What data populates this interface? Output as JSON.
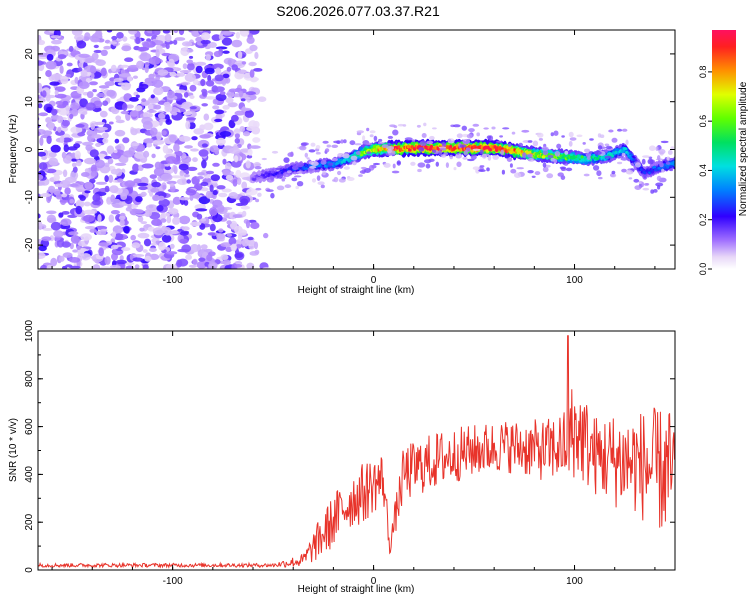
{
  "title": "S206.2026.077.03.37.R21",
  "chart_data": [
    {
      "type": "heatmap",
      "xlabel": "Height of straight line (km)",
      "ylabel": "Frequency (Hz)",
      "xlim": [
        -167,
        150
      ],
      "ylim": [
        -25,
        25
      ],
      "xticks": [
        -100,
        0,
        100
      ],
      "yticks": [
        -20,
        -10,
        0,
        10,
        20
      ],
      "colorbar": {
        "label": "Normalized spectral amplitude",
        "range": [
          0,
          0.97
        ],
        "ticks": [
          0.0,
          0.2,
          0.4,
          0.6,
          0.8
        ]
      },
      "noise_region_x": [
        -167,
        -50
      ],
      "ridge": {
        "description_points_x": [
          -60,
          -50,
          -40,
          -30,
          -20,
          -10,
          -5,
          0,
          10,
          20,
          40,
          60,
          80,
          95,
          105,
          115,
          125,
          130,
          135,
          140,
          148
        ],
        "frequency_hz": [
          -6,
          -5,
          -4,
          -3.5,
          -3,
          -1.5,
          -0.5,
          0,
          0.2,
          0.3,
          0.3,
          0.3,
          -1,
          -1.5,
          -2,
          -1.5,
          0,
          -2.5,
          -5,
          -4,
          -3
        ],
        "amplitude": [
          0.15,
          0.2,
          0.25,
          0.3,
          0.35,
          0.45,
          0.6,
          0.75,
          0.85,
          0.95,
          0.95,
          0.95,
          0.7,
          0.6,
          0.5,
          0.45,
          0.4,
          0.3,
          0.25,
          0.3,
          0.35
        ]
      }
    },
    {
      "type": "line",
      "xlabel": "Height of straight line (km)",
      "ylabel": "SNR (10 * v/v)",
      "xlim": [
        -167,
        150
      ],
      "ylim": [
        0,
        1000
      ],
      "xticks": [
        -100,
        0,
        100
      ],
      "yticks": [
        0,
        200,
        400,
        600,
        800,
        1000
      ],
      "color": "#e8332a",
      "series_envelope": {
        "x": [
          -167,
          -100,
          -50,
          -35,
          -25,
          -15,
          -10,
          -5,
          0,
          5,
          8,
          15,
          25,
          35,
          50,
          65,
          75,
          85,
          95,
          100,
          110,
          120,
          130,
          140,
          150
        ],
        "mean": [
          20,
          20,
          20,
          40,
          150,
          260,
          300,
          320,
          360,
          380,
          100,
          400,
          440,
          470,
          500,
          520,
          510,
          500,
          520,
          600,
          480,
          460,
          450,
          420,
          400
        ],
        "spread": [
          8,
          8,
          8,
          30,
          100,
          120,
          120,
          130,
          120,
          120,
          40,
          120,
          120,
          120,
          110,
          110,
          120,
          130,
          150,
          220,
          170,
          200,
          220,
          260,
          280
        ]
      }
    }
  ]
}
